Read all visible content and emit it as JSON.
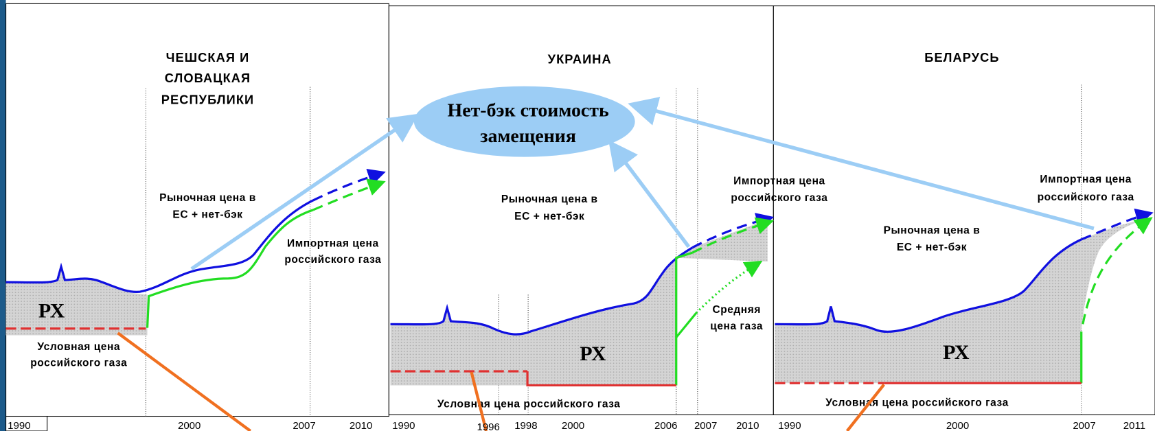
{
  "netback": [
    "Нет-бэк стоимость",
    "замещения"
  ],
  "panels": [
    {
      "title": [
        "ЧЕШСКАЯ И",
        "СЛОВАЦКАЯ",
        "РЕСПУБЛИКИ"
      ],
      "market_price": [
        "Рыночная цена в",
        "ЕС + нет-бэк"
      ],
      "import_price": [
        "Импортная цена",
        "российского газа"
      ],
      "conditional_price": [
        "Условная цена",
        "российского газа"
      ],
      "px": "РХ",
      "years": [
        "1990",
        "2000",
        "2007",
        "2010"
      ]
    },
    {
      "title": [
        "УКРАИНА"
      ],
      "market_price": [
        "Рыночная цена в",
        "ЕС + нет-бэк"
      ],
      "import_price": [
        "Импортная цена",
        "российского газа"
      ],
      "average_price": [
        "Средняя",
        "цена газа"
      ],
      "conditional_price": [
        "Условная цена российского газа"
      ],
      "px": "РХ",
      "years": [
        "1990",
        "1996",
        "1998",
        "2000",
        "2006",
        "2007",
        "2010"
      ]
    },
    {
      "title": [
        "БЕЛАРУСЬ"
      ],
      "market_price": [
        "Рыночная цена в",
        "ЕС + нет-бэк"
      ],
      "import_price": [
        "Импортная цена",
        "российского газа"
      ],
      "conditional_price": [
        "Условная цена российского газа"
      ],
      "px": "РХ",
      "years": [
        "1990",
        "2000",
        "2007",
        "2011"
      ]
    }
  ]
}
